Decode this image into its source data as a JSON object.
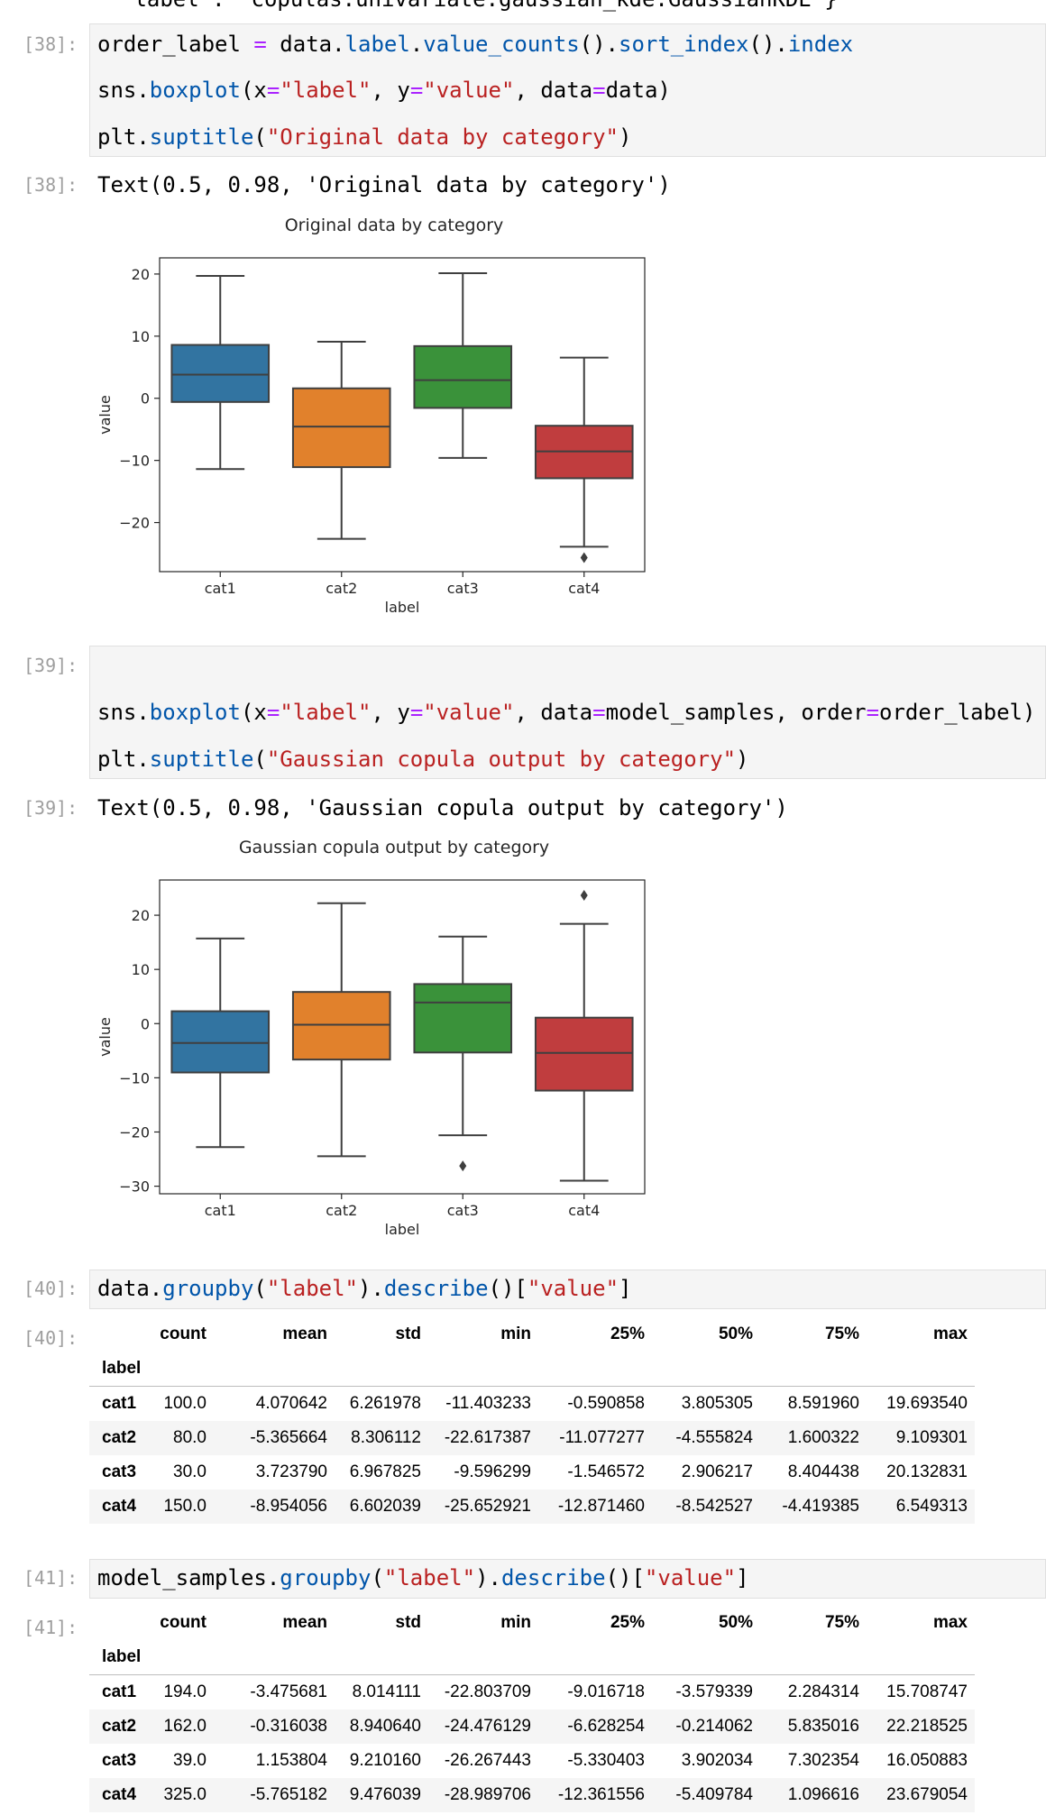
{
  "top_fragment": "'label': 'copulas.univariate.gaussian_kde.GaussianKDE'}",
  "cells": [
    {
      "prompt_in": "[38]:",
      "code": [
        "order_label = data.label.value_counts().sort_index().index",
        "sns.boxplot(x=\"label\", y=\"value\", data=data)",
        "plt.suptitle(\"Original data by category\")"
      ],
      "prompt_out": "[38]:",
      "output_text": "Text(0.5, 0.98, 'Original data by category')"
    },
    {
      "prompt_in": "[39]:",
      "code": [
        "sns.boxplot(x=\"label\", y=\"value\", data=model_samples, order=order_label)",
        "plt.suptitle(\"Gaussian copula output by category\")"
      ],
      "prompt_out": "[39]:",
      "output_text": "Text(0.5, 0.98, 'Gaussian copula output by category')"
    },
    {
      "prompt_in": "[40]:",
      "code": [
        "data.groupby(\"label\").describe()[\"value\"]"
      ],
      "prompt_out": "[40]:",
      "table": {
        "columns": [
          "count",
          "mean",
          "std",
          "min",
          "25%",
          "50%",
          "75%",
          "max"
        ],
        "index_name": "label",
        "rows": [
          [
            "cat1",
            "100.0",
            "4.070642",
            "6.261978",
            "-11.403233",
            "-0.590858",
            "3.805305",
            "8.591960",
            "19.693540"
          ],
          [
            "cat2",
            "80.0",
            "-5.365664",
            "8.306112",
            "-22.617387",
            "-11.077277",
            "-4.555824",
            "1.600322",
            "9.109301"
          ],
          [
            "cat3",
            "30.0",
            "3.723790",
            "6.967825",
            "-9.596299",
            "-1.546572",
            "2.906217",
            "8.404438",
            "20.132831"
          ],
          [
            "cat4",
            "150.0",
            "-8.954056",
            "6.602039",
            "-25.652921",
            "-12.871460",
            "-8.542527",
            "-4.419385",
            "6.549313"
          ]
        ]
      }
    },
    {
      "prompt_in": "[41]:",
      "code": [
        "model_samples.groupby(\"label\").describe()[\"value\"]"
      ],
      "prompt_out": "[41]:",
      "table": {
        "columns": [
          "count",
          "mean",
          "std",
          "min",
          "25%",
          "50%",
          "75%",
          "max"
        ],
        "index_name": "label",
        "rows": [
          [
            "cat1",
            "194.0",
            "-3.475681",
            "8.014111",
            "-22.803709",
            "-9.016718",
            "-3.579339",
            "2.284314",
            "15.708747"
          ],
          [
            "cat2",
            "162.0",
            "-0.316038",
            "8.940640",
            "-24.476129",
            "-6.628254",
            "-0.214062",
            "5.835016",
            "22.218525"
          ],
          [
            "cat3",
            "39.0",
            "1.153804",
            "9.210160",
            "-26.267443",
            "-5.330403",
            "3.902034",
            "7.302354",
            "16.050883"
          ],
          [
            "cat4",
            "325.0",
            "-5.765182",
            "9.476039",
            "-28.989706",
            "-12.361556",
            "-5.409784",
            "1.096616",
            "23.679054"
          ]
        ]
      }
    }
  ],
  "chart_data": [
    {
      "type": "box",
      "title": "Original data by category",
      "xlabel": "label",
      "ylabel": "value",
      "categories": [
        "cat1",
        "cat2",
        "cat3",
        "cat4"
      ],
      "colors": [
        "#3274a1",
        "#e1812c",
        "#3a923a",
        "#c03d3e"
      ],
      "boxes": [
        {
          "whislo": -11.4,
          "q1": -0.59,
          "med": 3.81,
          "q3": 8.59,
          "whishi": 19.69,
          "fliers": []
        },
        {
          "whislo": -22.62,
          "q1": -11.08,
          "med": -4.56,
          "q3": 1.6,
          "whishi": 9.11,
          "fliers": []
        },
        {
          "whislo": -9.6,
          "q1": -1.55,
          "med": 2.91,
          "q3": 8.4,
          "whishi": 20.13,
          "fliers": []
        },
        {
          "whislo": -23.9,
          "q1": -12.87,
          "med": -8.54,
          "q3": -4.42,
          "whishi": 6.55,
          "fliers": [
            -25.65
          ]
        }
      ],
      "ylim": [
        -27.9,
        22.6
      ],
      "yticks": [
        {
          "value": -20,
          "label": "−20"
        },
        {
          "value": -10,
          "label": "−10"
        },
        0,
        10,
        20
      ]
    },
    {
      "type": "box",
      "title": "Gaussian copula output by category",
      "xlabel": "label",
      "ylabel": "value",
      "categories": [
        "cat1",
        "cat2",
        "cat3",
        "cat4"
      ],
      "colors": [
        "#3274a1",
        "#e1812c",
        "#3a923a",
        "#c03d3e"
      ],
      "boxes": [
        {
          "whislo": -22.8,
          "q1": -9.02,
          "med": -3.58,
          "q3": 2.28,
          "whishi": 15.71,
          "fliers": []
        },
        {
          "whislo": -24.48,
          "q1": -6.63,
          "med": -0.21,
          "q3": 5.84,
          "whishi": 22.22,
          "fliers": []
        },
        {
          "whislo": -20.6,
          "q1": -5.33,
          "med": 3.9,
          "q3": 7.3,
          "whishi": 16.05,
          "fliers": [
            -26.27
          ]
        },
        {
          "whislo": -28.99,
          "q1": -12.36,
          "med": -5.41,
          "q3": 1.1,
          "whishi": 18.4,
          "fliers": [
            23.68
          ]
        }
      ],
      "ylim": [
        -31.4,
        26.5
      ],
      "yticks": [
        {
          "value": -30,
          "label": "−30"
        },
        {
          "value": -20,
          "label": "−20"
        },
        {
          "value": -10,
          "label": "−10"
        },
        0,
        10,
        20
      ]
    }
  ]
}
